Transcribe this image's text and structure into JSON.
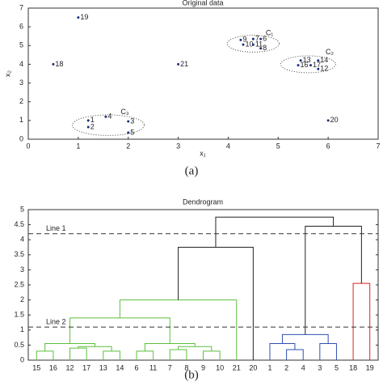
{
  "chart_data": [
    {
      "type": "scatter",
      "title": "Original data",
      "xlabel": "x₁",
      "ylabel": "x₂",
      "caption": "(a)",
      "xlim": [
        0,
        7
      ],
      "ylim": [
        0,
        7
      ],
      "xticks": [
        0,
        1,
        2,
        3,
        4,
        5,
        6,
        7
      ],
      "yticks": [
        0,
        1,
        2,
        3,
        4,
        5,
        6,
        7
      ],
      "color": "#1f2f7a",
      "point_labels": [
        "19",
        "18",
        "21",
        "9",
        "7",
        "6",
        "10",
        "11",
        "8",
        "13",
        "14",
        "16",
        "17",
        "12",
        "20",
        "1",
        "2",
        "4",
        "3",
        "5"
      ],
      "x": [
        1.0,
        0.5,
        3.0,
        4.25,
        4.5,
        4.65,
        4.3,
        4.5,
        4.65,
        5.45,
        5.8,
        5.4,
        5.65,
        5.8,
        6.0,
        1.2,
        1.2,
        1.55,
        2.0,
        2.0
      ],
      "values": [
        6.5,
        4.0,
        4.0,
        5.3,
        5.35,
        5.35,
        5.05,
        5.05,
        4.85,
        4.2,
        4.2,
        3.95,
        3.95,
        3.75,
        1.0,
        1.0,
        0.65,
        1.2,
        0.95,
        0.35
      ],
      "clusters": [
        {
          "label": "C₁",
          "center": [
            4.5,
            5.1
          ],
          "radii": [
            0.52,
            0.45
          ],
          "label_at": [
            4.75,
            5.65
          ]
        },
        {
          "label": "C₂",
          "center": [
            5.6,
            4.0
          ],
          "radii": [
            0.55,
            0.45
          ],
          "label_at": [
            5.95,
            4.65
          ]
        },
        {
          "label": "C₃",
          "center": [
            1.6,
            0.75
          ],
          "radii": [
            0.72,
            0.55
          ],
          "label_at": [
            1.85,
            1.45
          ]
        }
      ]
    },
    {
      "type": "dendrogram",
      "title": "Dendrogram",
      "caption": "(b)",
      "ylim": [
        0,
        5
      ],
      "yticks": [
        0,
        0.5,
        1,
        1.5,
        2,
        2.5,
        3,
        3.5,
        4,
        4.5,
        5
      ],
      "leaves": [
        "15",
        "16",
        "12",
        "17",
        "13",
        "14",
        "6",
        "11",
        "7",
        "8",
        "9",
        "10",
        "21",
        "20",
        "1",
        "2",
        "4",
        "3",
        "5",
        "18",
        "19"
      ],
      "merges": [
        {
          "left": 0,
          "right": 1,
          "height": 0.3,
          "color": "#5cbf3c"
        },
        {
          "left": 2,
          "right": 3,
          "height": 0.4,
          "color": "#5cbf3c"
        },
        {
          "left": 4,
          "right": 5,
          "height": 0.3,
          "color": "#5cbf3c"
        },
        {
          "left": 22,
          "right": 23,
          "height": 0.45,
          "color": "#5cbf3c"
        },
        {
          "left": 21,
          "right": 24,
          "height": 0.55,
          "color": "#5cbf3c"
        },
        {
          "left": 6,
          "right": 7,
          "height": 0.3,
          "color": "#5cbf3c"
        },
        {
          "left": 8,
          "right": 9,
          "height": 0.35,
          "color": "#5cbf3c"
        },
        {
          "left": 10,
          "right": 11,
          "height": 0.3,
          "color": "#5cbf3c"
        },
        {
          "left": 27,
          "right": 28,
          "height": 0.45,
          "color": "#5cbf3c"
        },
        {
          "left": 26,
          "right": 29,
          "height": 0.55,
          "color": "#5cbf3c"
        },
        {
          "left": 25,
          "right": 30,
          "height": 1.4,
          "color": "#5cbf3c"
        },
        {
          "left": 31,
          "right": 12,
          "height": 2.0,
          "color": "#5cbf3c"
        },
        {
          "left": 32,
          "right": 13,
          "height": 3.75,
          "color": "#222222"
        },
        {
          "left": 15,
          "right": 16,
          "height": 0.35,
          "color": "#3050b0"
        },
        {
          "left": 14,
          "right": 34,
          "height": 0.55,
          "color": "#3050b0"
        },
        {
          "left": 17,
          "right": 18,
          "height": 0.55,
          "color": "#3050b0"
        },
        {
          "left": 35,
          "right": 36,
          "height": 0.85,
          "color": "#3050b0"
        },
        {
          "left": 19,
          "right": 20,
          "height": 2.55,
          "color": "#dd2222"
        },
        {
          "left": 37,
          "right": 38,
          "height": 4.45,
          "color": "#222222"
        },
        {
          "left": 33,
          "right": 39,
          "height": 4.75,
          "color": "#222222"
        }
      ],
      "reference_lines": [
        {
          "label": "Line 1",
          "value": 4.2
        },
        {
          "label": "Line 2",
          "value": 1.1
        }
      ]
    }
  ]
}
